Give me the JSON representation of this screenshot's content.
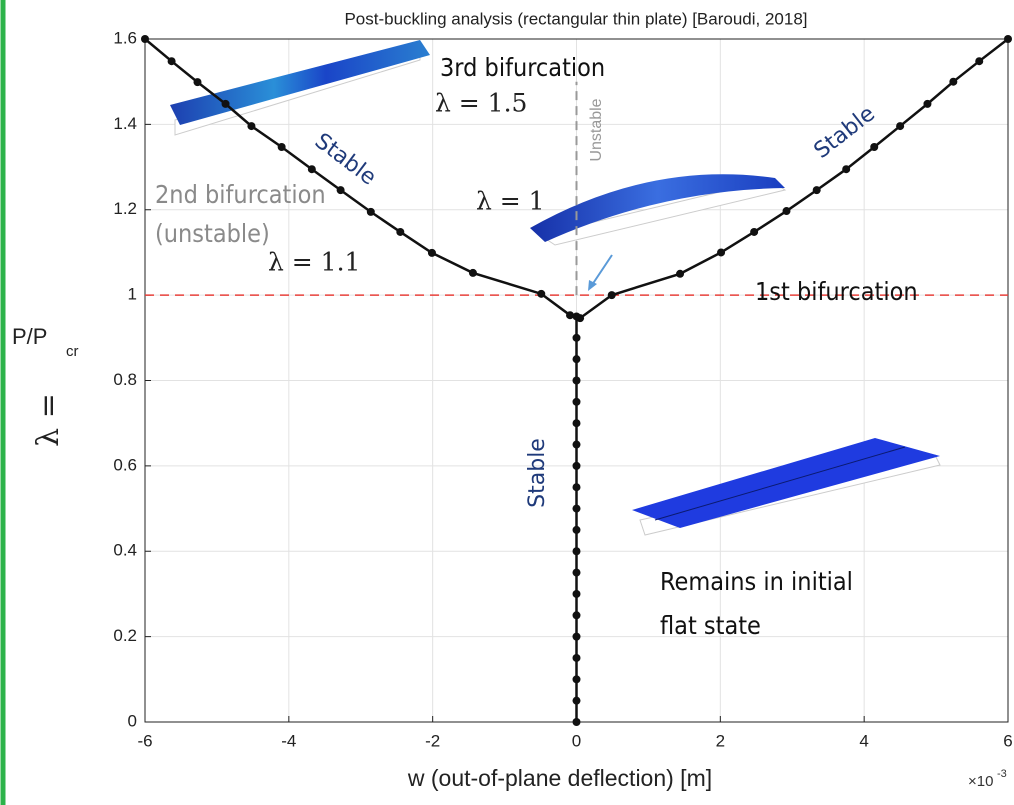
{
  "chart_data": {
    "type": "line",
    "title": "Post-buckling analysis (rectangular thin plate) [Baroudi, 2018]",
    "x_label": "w (out-of-plane deflection)    [m]",
    "x_scale_label": "×10",
    "x_scale_exponent": "-3",
    "y_label_lambda": "λ =",
    "y_label_p": "P/P",
    "y_label_sub": "cr",
    "xlim": [
      -6,
      6
    ],
    "ylim": [
      0,
      1.6
    ],
    "xticks": [
      -6,
      -4,
      -2,
      0,
      2,
      4,
      6
    ],
    "yticks": [
      0,
      0.2,
      0.4,
      0.6,
      0.8,
      1,
      1.2,
      1.4,
      1.6
    ],
    "grid": true,
    "series": [
      {
        "color": "#111111",
        "x": [
          -6,
          -5.63,
          -5.27,
          -4.88,
          -4.52,
          -4.1,
          -3.68,
          -3.28,
          -2.86,
          -2.45,
          -2.01,
          -1.44,
          -0.49,
          -0.09
        ],
        "values": [
          1.6,
          1.548,
          1.499,
          1.448,
          1.396,
          1.347,
          1.295,
          1.246,
          1.195,
          1.148,
          1.099,
          1.052,
          1.003,
          0.953
        ]
      },
      {
        "color": "#111111",
        "x": [
          0.05,
          0.49,
          1.44,
          2.01,
          2.47,
          2.92,
          3.34,
          3.75,
          4.14,
          4.5,
          4.88,
          5.24,
          5.6,
          6
        ],
        "values": [
          0.946,
          1.0,
          1.05,
          1.1,
          1.148,
          1.197,
          1.246,
          1.295,
          1.347,
          1.396,
          1.448,
          1.5,
          1.548,
          1.6
        ]
      },
      {
        "color": "#111111",
        "x": [
          0,
          0,
          0,
          0,
          0,
          0,
          0,
          0,
          0,
          0,
          0,
          0,
          0,
          0,
          0,
          0,
          0,
          0,
          0,
          0
        ],
        "values": [
          0,
          0.05,
          0.1,
          0.15,
          0.2,
          0.25,
          0.3,
          0.35,
          0.4,
          0.45,
          0.5,
          0.55,
          0.6,
          0.65,
          0.7,
          0.75,
          0.8,
          0.85,
          0.9,
          0.95
        ]
      }
    ],
    "hline": {
      "y": 1,
      "color": "#e8403a"
    },
    "vline": {
      "x": 0,
      "ylim": [
        1,
        1.5
      ],
      "color": "#999999"
    },
    "annotations": {
      "third_bifurcation": "3rd bifurcation",
      "lambda_15": "λ = 1.5",
      "unstable": "Unstable",
      "stable_left": "Stable",
      "stable_right": "Stable",
      "stable_stem": "Stable",
      "second_bifurcation": "2nd bifurcation",
      "second_unstable": "(unstable)",
      "lambda_11": "λ = 1.1",
      "lambda_1": "λ = 1",
      "first_bifurcation": "1st bifurcation",
      "remains_1": "Remains in initial",
      "remains_2": "flat state"
    }
  }
}
